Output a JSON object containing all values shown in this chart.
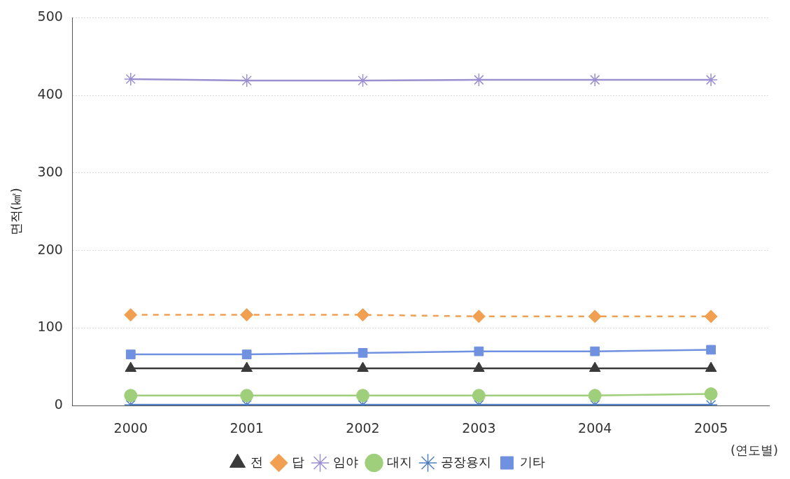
{
  "chart_data": {
    "type": "line",
    "ylabel": "면적(㎢)",
    "xlabel": "(연도별)",
    "categories": [
      "2000",
      "2001",
      "2002",
      "2003",
      "2004",
      "2005"
    ],
    "ylim": [
      0,
      500
    ],
    "yticks": [
      0,
      100,
      200,
      300,
      400,
      500
    ],
    "grid": "y",
    "legend": "bottom",
    "series": [
      {
        "name": "전",
        "color": "#3a3a3a",
        "marker": "triangle",
        "line_style": "solid",
        "values": [
          48,
          48,
          48,
          48,
          48,
          48
        ]
      },
      {
        "name": "답",
        "color": "#f0a050",
        "marker": "diamond",
        "line_style": "dashed",
        "values": [
          117,
          117,
          117,
          115,
          115,
          115
        ]
      },
      {
        "name": "임야",
        "color": "#9b8fd0",
        "marker": "cross",
        "line_style": "solid",
        "values": [
          421,
          419,
          419,
          420,
          420,
          420
        ]
      },
      {
        "name": "대지",
        "color": "#9fcf7a",
        "marker": "circle",
        "line_style": "solid",
        "values": [
          13,
          13,
          13,
          13,
          13,
          15
        ]
      },
      {
        "name": "공장용지",
        "color": "#4f7fc0",
        "marker": "cross",
        "line_style": "solid",
        "values": [
          1,
          1,
          1,
          1,
          1,
          1
        ]
      },
      {
        "name": "기타",
        "color": "#7090e0",
        "marker": "square",
        "line_style": "solid",
        "values": [
          66,
          66,
          68,
          70,
          70,
          72
        ]
      }
    ]
  }
}
